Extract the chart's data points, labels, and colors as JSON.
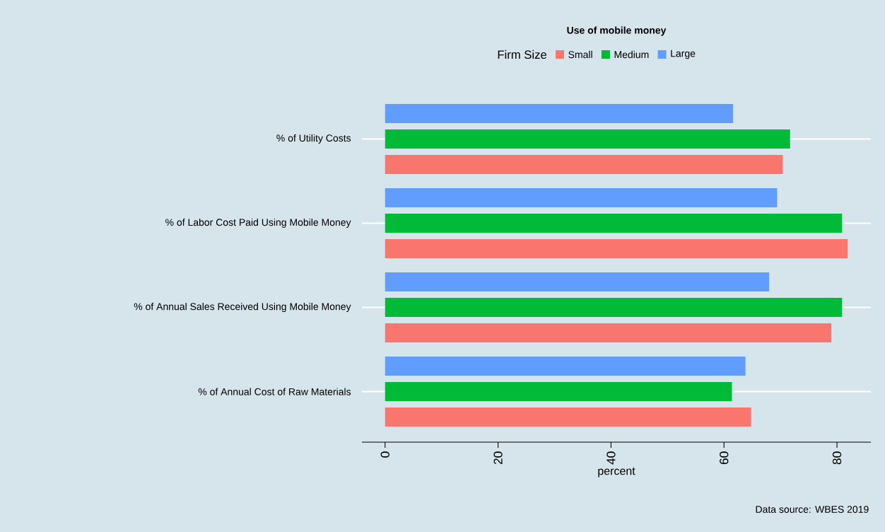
{
  "chart_data": {
    "type": "bar",
    "orientation": "horizontal",
    "title": "Use of mobile money",
    "legend_title": "Firm Size",
    "xlabel": "percent",
    "categories": [
      "% of Utility Costs",
      "% of Labor Cost Paid Using Mobile Money",
      "% of Annual Sales Received Using Mobile Money",
      "% of Annual Cost of Raw Materials"
    ],
    "series": [
      {
        "name": "Small",
        "color": "#f8766d",
        "values": [
          70.4,
          81.9,
          79.0,
          64.8
        ]
      },
      {
        "name": "Medium",
        "color": "#00ba38",
        "values": [
          71.7,
          80.9,
          80.9,
          61.4
        ]
      },
      {
        "name": "Large",
        "color": "#619cff",
        "values": [
          61.6,
          69.4,
          68.0,
          63.8
        ]
      }
    ],
    "xlim": [
      -4.1,
      86
    ],
    "xticks": [
      0,
      20,
      40,
      60,
      80
    ],
    "grid": "y",
    "legend": "top",
    "annotations": [
      "Data source: WBES 2019"
    ]
  }
}
